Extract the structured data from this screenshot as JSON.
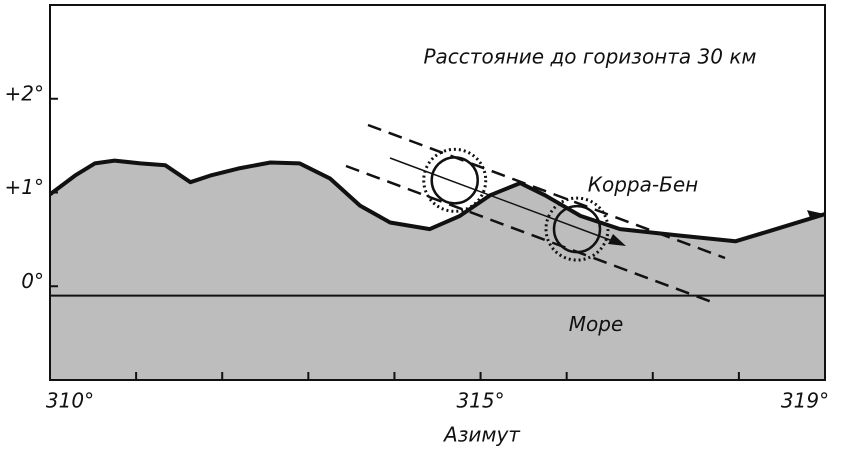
{
  "chart_data": {
    "type": "horizon",
    "title": "Расстояние до горизонта 30 км",
    "xlabel": "Азимут",
    "sea_label": "Море",
    "peak_label": "Корра-Бен",
    "xlim": [
      310,
      319
    ],
    "ylim": [
      -1,
      3
    ],
    "xticks": [
      {
        "value": 310,
        "label": "310°"
      },
      {
        "value": 315,
        "label": "315°"
      },
      {
        "value": 319,
        "label": "319°"
      }
    ],
    "xminor": [
      311,
      312,
      313,
      314,
      316,
      317,
      318
    ],
    "yticks": [
      {
        "value": 0,
        "label": "0°"
      },
      {
        "value": 1,
        "label": "+1°"
      },
      {
        "value": 2,
        "label": "+2°"
      }
    ],
    "sea_level": -0.1,
    "color": "#bdbdbd",
    "horizon": {
      "x": [
        310,
        310.29,
        310.52,
        310.75,
        311.05,
        311.34,
        311.63,
        311.86,
        312.21,
        312.56,
        312.9,
        313.25,
        313.6,
        313.95,
        314.41,
        314.76,
        315.11,
        315.46,
        315.75,
        316.16,
        316.62,
        317.32,
        317.96,
        318.36,
        319
      ],
      "values": [
        0.98,
        1.18,
        1.31,
        1.34,
        1.31,
        1.29,
        1.11,
        1.18,
        1.26,
        1.32,
        1.31,
        1.15,
        0.86,
        0.68,
        0.61,
        0.75,
        0.97,
        1.1,
        0.97,
        0.75,
        0.61,
        0.54,
        0.48,
        0.59,
        0.77
      ]
    },
    "sun": {
      "x": [
        314.7,
        316.12
      ],
      "values": [
        1.13,
        0.61
      ]
    }
  }
}
